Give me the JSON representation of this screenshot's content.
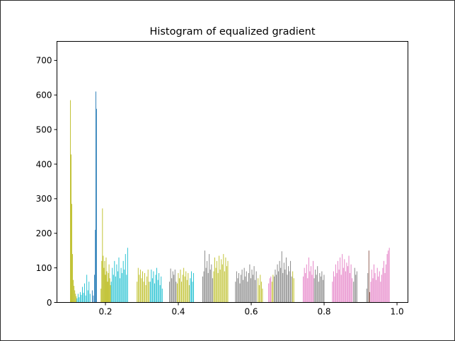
{
  "chart_data": {
    "type": "bar",
    "title": "Histogram of equalized gradient",
    "xlabel": "",
    "ylabel": "",
    "xlim": [
      0.067,
      1.03
    ],
    "ylim": [
      0,
      755
    ],
    "xticks": [
      "0.2",
      "0.4",
      "0.6",
      "0.8",
      "1.0"
    ],
    "xtick_values": [
      0.2,
      0.4,
      0.6,
      0.8,
      1.0
    ],
    "yticks": [
      "0",
      "100",
      "200",
      "300",
      "400",
      "500",
      "600",
      "700"
    ],
    "ytick_values": [
      0,
      100,
      200,
      300,
      400,
      500,
      600,
      700
    ],
    "grid": false,
    "legend": "none",
    "bin_width": 0.0016,
    "series": [
      {
        "color": "#bcbd22",
        "x": [
          0.103,
          0.105,
          0.107,
          0.109,
          0.111,
          0.113,
          0.115,
          0.117,
          0.119
        ],
        "values": [
          585,
          428,
          285,
          140,
          65,
          48,
          35,
          25,
          18
        ]
      },
      {
        "color": "#17becf",
        "x": [
          0.121,
          0.124,
          0.127,
          0.13,
          0.133,
          0.136,
          0.139,
          0.142,
          0.145,
          0.148,
          0.151,
          0.154,
          0.157
        ],
        "values": [
          12,
          25,
          15,
          30,
          22,
          45,
          28,
          55,
          20,
          80,
          35,
          60,
          25
        ]
      },
      {
        "color": "#1f77b4",
        "x": [
          0.163,
          0.166,
          0.169,
          0.1715,
          0.173,
          0.1745
        ],
        "values": [
          35,
          20,
          80,
          210,
          610,
          560
        ]
      },
      {
        "color": "#bcbd22",
        "x": [
          0.187,
          0.189,
          0.191,
          0.193,
          0.195,
          0.197,
          0.199,
          0.201,
          0.203,
          0.205,
          0.207,
          0.209,
          0.211,
          0.213
        ],
        "values": [
          40,
          120,
          272,
          135,
          100,
          120,
          80,
          130,
          90,
          60,
          85,
          110,
          70,
          50
        ]
      },
      {
        "color": "#17becf",
        "x": [
          0.215,
          0.218,
          0.221,
          0.224,
          0.227,
          0.23,
          0.233,
          0.236,
          0.239,
          0.242,
          0.245,
          0.248,
          0.251,
          0.254,
          0.257,
          0.26
        ],
        "values": [
          60,
          100,
          80,
          120,
          75,
          110,
          90,
          130,
          70,
          100,
          85,
          120,
          95,
          140,
          80,
          158
        ]
      },
      {
        "color": "#bcbd22",
        "x": [
          0.286,
          0.289,
          0.292,
          0.295,
          0.298,
          0.301,
          0.304,
          0.307,
          0.31,
          0.313,
          0.316,
          0.319
        ],
        "values": [
          60,
          100,
          80,
          95,
          70,
          90,
          60,
          85,
          50,
          75,
          95,
          60
        ]
      },
      {
        "color": "#17becf",
        "x": [
          0.322,
          0.325,
          0.328,
          0.331,
          0.334,
          0.337,
          0.34,
          0.343,
          0.346,
          0.349,
          0.352,
          0.355
        ],
        "values": [
          60,
          95,
          70,
          90,
          55,
          80,
          100,
          65,
          85,
          50,
          75,
          40
        ]
      },
      {
        "color": "#7f7f7f",
        "x": [
          0.375,
          0.378,
          0.381,
          0.384,
          0.387,
          0.39,
          0.393
        ],
        "values": [
          60,
          98,
          70,
          90,
          80,
          95,
          60
        ]
      },
      {
        "color": "#bcbd22",
        "x": [
          0.396,
          0.399,
          0.402,
          0.405,
          0.408,
          0.411,
          0.414,
          0.417,
          0.42,
          0.423,
          0.426,
          0.429
        ],
        "values": [
          55,
          85,
          70,
          95,
          60,
          80,
          100,
          75,
          90,
          65,
          85,
          50
        ]
      },
      {
        "color": "#17becf",
        "x": [
          0.432,
          0.435,
          0.438,
          0.441
        ],
        "values": [
          70,
          90,
          60,
          85
        ]
      },
      {
        "color": "#7f7f7f",
        "x": [
          0.466,
          0.469,
          0.472,
          0.475,
          0.478,
          0.481,
          0.484,
          0.487,
          0.49,
          0.493
        ],
        "values": [
          75,
          90,
          150,
          100,
          120,
          85,
          140,
          95,
          110,
          70
        ]
      },
      {
        "color": "#bcbd22",
        "x": [
          0.496,
          0.499,
          0.502,
          0.505,
          0.508,
          0.511,
          0.514,
          0.517,
          0.52,
          0.523,
          0.526,
          0.529,
          0.532,
          0.535
        ],
        "values": [
          90,
          130,
          100,
          120,
          85,
          135,
          95,
          125,
          110,
          140,
          90,
          130,
          105,
          120
        ]
      },
      {
        "color": "#7f7f7f",
        "x": [
          0.556,
          0.559,
          0.562,
          0.565,
          0.568,
          0.571,
          0.574,
          0.577,
          0.58,
          0.583,
          0.586,
          0.589,
          0.592,
          0.595,
          0.598,
          0.601,
          0.604,
          0.607,
          0.61,
          0.613
        ],
        "values": [
          60,
          90,
          70,
          85,
          55,
          80,
          95,
          65,
          100,
          75,
          90,
          60,
          85,
          110,
          70,
          95,
          80,
          105,
          65,
          90
        ]
      },
      {
        "color": "#bcbd22",
        "x": [
          0.618,
          0.621,
          0.624,
          0.627,
          0.63
        ],
        "values": [
          70,
          50,
          80,
          60,
          40
        ]
      },
      {
        "color": "#e377c2",
        "x": [
          0.647,
          0.65,
          0.653
        ],
        "values": [
          55,
          70,
          75
        ]
      },
      {
        "color": "#bcbd22",
        "x": [
          0.656,
          0.659
        ],
        "values": [
          60,
          80
        ]
      },
      {
        "color": "#7f7f7f",
        "x": [
          0.662,
          0.665,
          0.668,
          0.671,
          0.674,
          0.677,
          0.68,
          0.683,
          0.686,
          0.689,
          0.692,
          0.695,
          0.698,
          0.701,
          0.704,
          0.707,
          0.71
        ],
        "values": [
          75,
          95,
          80,
          110,
          90,
          120,
          100,
          148,
          85,
          115,
          95,
          130,
          80,
          105,
          90,
          120,
          75
        ]
      },
      {
        "color": "#bcbd22",
        "x": [
          0.713,
          0.716
        ],
        "values": [
          90,
          70
        ]
      },
      {
        "color": "#e377c2",
        "x": [
          0.742,
          0.745,
          0.748,
          0.751,
          0.754,
          0.757,
          0.76,
          0.763,
          0.766,
          0.769
        ],
        "values": [
          75,
          100,
          85,
          110,
          70,
          130,
          90,
          105,
          80,
          120
        ]
      },
      {
        "color": "#7f7f7f",
        "x": [
          0.772,
          0.775,
          0.778,
          0.781,
          0.784,
          0.787,
          0.79,
          0.793,
          0.796,
          0.799
        ],
        "values": [
          70,
          95,
          80,
          105,
          60,
          85,
          75,
          90,
          65,
          80
        ]
      },
      {
        "color": "#e377c2",
        "x": [
          0.822,
          0.825,
          0.828,
          0.831,
          0.834,
          0.837,
          0.84,
          0.843,
          0.846,
          0.849,
          0.852,
          0.855,
          0.858,
          0.861,
          0.864,
          0.867,
          0.87,
          0.873,
          0.876
        ],
        "values": [
          60,
          90,
          75,
          110,
          85,
          120,
          95,
          130,
          80,
          140,
          100,
          125,
          90,
          115,
          105,
          135,
          85,
          110,
          70
        ]
      },
      {
        "color": "#7f7f7f",
        "x": [
          0.88,
          0.883,
          0.886,
          0.889
        ],
        "values": [
          60,
          100,
          80,
          90
        ]
      },
      {
        "color": "#7f7f7f",
        "x": [
          0.916,
          0.919
        ],
        "values": [
          40,
          85
        ]
      },
      {
        "color": "#8c564b",
        "x": [
          0.922,
          0.924
        ],
        "values": [
          150,
          30
        ]
      },
      {
        "color": "#e377c2",
        "x": [
          0.927,
          0.93,
          0.933,
          0.936,
          0.939,
          0.942,
          0.945,
          0.948,
          0.951,
          0.954,
          0.957,
          0.96,
          0.963,
          0.966,
          0.969,
          0.972,
          0.975,
          0.978
        ],
        "values": [
          60,
          95,
          70,
          110,
          85,
          65,
          100,
          75,
          90,
          60,
          80,
          100,
          120,
          85,
          110,
          140,
          150,
          158
        ]
      }
    ]
  }
}
